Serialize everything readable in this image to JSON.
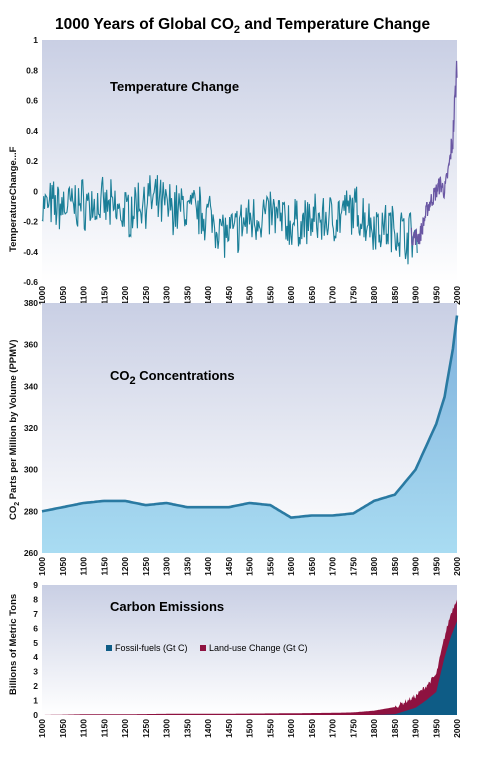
{
  "title_main": "1000 Years of Global CO",
  "title_sub": "2",
  "title_rest": " and Temperature Change",
  "colors": {
    "temp_early": "#1a7e97",
    "temp_recent": "#6a57a3",
    "co2_line": "#2a7aa2",
    "co2_fill": "#a6cee9",
    "fossil": "#0e5c86",
    "landuse": "#8e1240",
    "panel_bg_top": "#cdd3e6",
    "panel_bg_bottom": "#ffffff"
  },
  "chart_data": [
    {
      "type": "line",
      "panel_title": "Temperature Change",
      "ylabel": "TemperatureChange...F",
      "xlim": [
        1000,
        2000
      ],
      "ylim": [
        -0.6,
        1
      ],
      "yticks": [
        "1",
        "0.8",
        "0.6",
        "0.4",
        "0.2",
        "0",
        "-0.2",
        "-0.4",
        "-0.6"
      ],
      "xticks": [
        "1000",
        "1050",
        "1100",
        "1150",
        "1200",
        "1250",
        "1300",
        "1350",
        "1400",
        "1450",
        "1500",
        "1550",
        "1600",
        "1650",
        "1700",
        "1750",
        "1800",
        "1850",
        "1900",
        "1950",
        "2000"
      ],
      "series": [
        {
          "x": [
            1000,
            1050,
            1100,
            1150,
            1200,
            1250,
            1300,
            1350,
            1400,
            1450,
            1500,
            1550,
            1600,
            1650,
            1700,
            1750,
            1800,
            1850,
            1890
          ],
          "values": [
            -0.1,
            -0.1,
            -0.08,
            -0.1,
            -0.15,
            -0.05,
            -0.1,
            -0.12,
            -0.15,
            -0.3,
            -0.18,
            -0.15,
            -0.22,
            -0.2,
            -0.18,
            -0.12,
            -0.22,
            -0.25,
            -0.3
          ]
        },
        {
          "x": [
            1890,
            1910,
            1930,
            1950,
            1960,
            1970,
            1980,
            1990,
            2000
          ],
          "values": [
            -0.3,
            -0.3,
            -0.1,
            0.0,
            0.05,
            0.0,
            0.15,
            0.35,
            0.85
          ]
        }
      ]
    },
    {
      "type": "area",
      "panel_title": "CO2 Concentrations",
      "ylabel": "CO2 Parts per Million by Volume (PPMV)",
      "xlim": [
        1000,
        2000
      ],
      "ylim": [
        260,
        380
      ],
      "yticks": [
        "380",
        "360",
        "340",
        "320",
        "300",
        "280",
        "260"
      ],
      "xticks": [
        "1000",
        "1050",
        "1100",
        "1150",
        "1200",
        "1250",
        "1300",
        "1350",
        "1400",
        "1450",
        "1500",
        "1550",
        "1600",
        "1650",
        "1700",
        "1750",
        "1800",
        "1850",
        "1900",
        "1950",
        "2000"
      ],
      "x": [
        1000,
        1050,
        1100,
        1150,
        1200,
        1250,
        1300,
        1350,
        1400,
        1450,
        1500,
        1550,
        1600,
        1650,
        1700,
        1750,
        1800,
        1850,
        1900,
        1950,
        1970,
        1990,
        2000
      ],
      "values": [
        280,
        282,
        284,
        285,
        285,
        283,
        284,
        282,
        282,
        282,
        284,
        283,
        277,
        278,
        278,
        279,
        285,
        288,
        300,
        322,
        335,
        358,
        374
      ]
    },
    {
      "type": "area",
      "panel_title": "Carbon Emissions",
      "ylabel": "Billions of Metric Tons",
      "xlim": [
        1000,
        2000
      ],
      "ylim": [
        0,
        9
      ],
      "yticks": [
        "9",
        "8",
        "7",
        "6",
        "5",
        "4",
        "3",
        "2",
        "1",
        "0"
      ],
      "xticks": [
        "1000",
        "1050",
        "1100",
        "1150",
        "1200",
        "1250",
        "1300",
        "1350",
        "1400",
        "1450",
        "1500",
        "1550",
        "1600",
        "1650",
        "1700",
        "1750",
        "1800",
        "1850",
        "1900",
        "1950",
        "2000"
      ],
      "x": [
        1000,
        1100,
        1200,
        1300,
        1400,
        1500,
        1600,
        1700,
        1750,
        1800,
        1850,
        1900,
        1925,
        1950,
        1970,
        1985,
        2000
      ],
      "series": [
        {
          "name": "Fossil-fuels (Gt C)",
          "values": [
            0,
            0,
            0,
            0,
            0,
            0,
            0,
            0,
            0,
            0,
            0.05,
            0.5,
            1.0,
            1.6,
            4.0,
            5.4,
            6.5
          ]
        },
        {
          "name": "Land-use Change (Gt C)",
          "values": [
            0,
            0.05,
            0.05,
            0.08,
            0.08,
            0.1,
            0.12,
            0.15,
            0.18,
            0.3,
            0.5,
            0.8,
            1.0,
            1.2,
            1.4,
            1.6,
            1.6
          ]
        }
      ]
    }
  ]
}
